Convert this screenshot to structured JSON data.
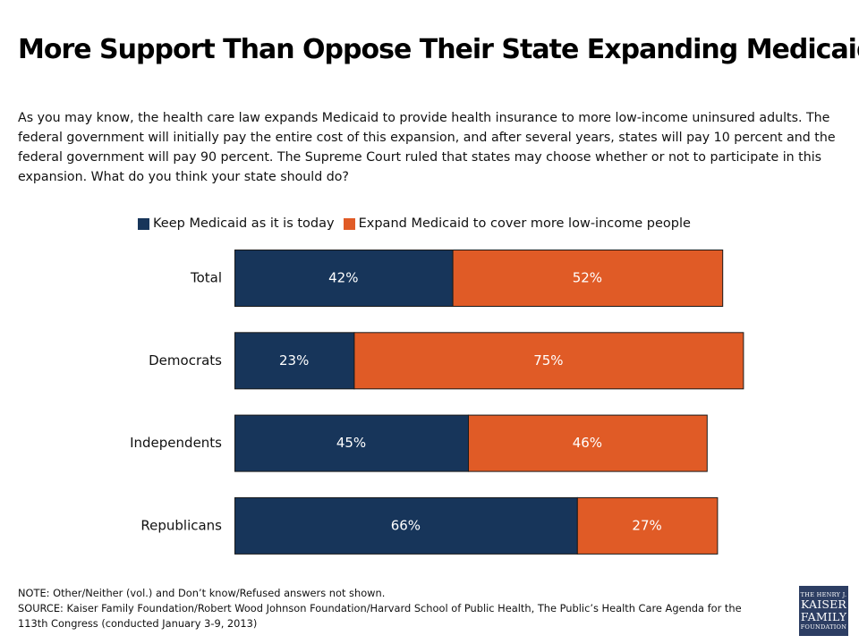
{
  "title": "More Support Than Oppose Their State Expanding Medicaid",
  "question": "As you may know, the health care law expands Medicaid to provide health insurance to more low-income uninsured adults. The federal government will initially pay the entire cost of this expansion, and after several years, states will pay 10 percent and the federal government will pay 90 percent. The Supreme Court ruled that states may choose whether or not to participate in this expansion.  What do you think your state should do?",
  "colors": {
    "keep": "#17355a",
    "expand": "#e05b26",
    "bar_border": "#1a1a1a"
  },
  "chart_data": {
    "type": "bar",
    "orientation": "horizontal",
    "stacked": true,
    "categories": [
      "Total",
      "Democrats",
      "Independents",
      "Republicans"
    ],
    "series": [
      {
        "name": "Keep Medicaid as it is today",
        "values": [
          42,
          23,
          45,
          66
        ],
        "labels": [
          "42%",
          "23%",
          "45%",
          "66%"
        ]
      },
      {
        "name": "Expand Medicaid to cover more low-income people",
        "values": [
          52,
          75,
          46,
          27
        ],
        "labels": [
          "52%",
          "75%",
          "46%",
          "27%"
        ]
      }
    ],
    "unit": "%",
    "legend": "top"
  },
  "footnotes": {
    "note": "NOTE: Other/Neither (vol.) and Don’t know/Refused answers not shown.",
    "source": "SOURCE: Kaiser Family Foundation/Robert Wood Johnson Foundation/Harvard School of Public Health, The Public’s Health Care Agenda for the 113th Congress (conducted January 3-9, 2013)"
  },
  "logo": {
    "line1": "THE HENRY J.",
    "line2": "KAISER",
    "line3": "FAMILY",
    "line4": "FOUNDATION"
  }
}
